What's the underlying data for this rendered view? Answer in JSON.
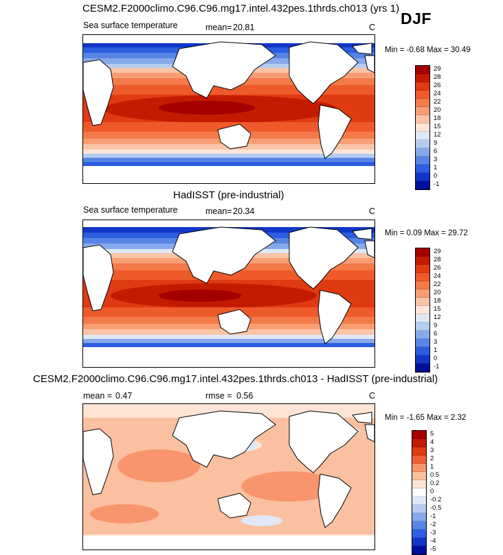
{
  "season": "DJF",
  "panels": [
    {
      "title": "CESM2.F2000climo.C96.C96.mg17.intel.432pes.1thrds.ch013 (yrs 1)",
      "variable": "Sea surface temperature",
      "stat_label": "mean=",
      "stat_value": "20.81",
      "units": "C",
      "range_text": "Min =  -0.68 Max =  30.49",
      "levels": [
        "29",
        "28",
        "26",
        "24",
        "22",
        "20",
        "18",
        "15",
        "12",
        "9",
        "6",
        "3",
        "1",
        "0",
        "-1"
      ],
      "colors": [
        "#a50000",
        "#c41a00",
        "#e03a12",
        "#ef5a2a",
        "#f57a4a",
        "#f89e74",
        "#fbc4a6",
        "#fde6d8",
        "#dfe8f6",
        "#b5ccf0",
        "#86a9eb",
        "#5785e6",
        "#2d5de0",
        "#1236c8",
        "#000f9a"
      ]
    },
    {
      "title": "HadISST (pre-industrial)",
      "variable": "Sea surface temperature",
      "stat_label": "mean=",
      "stat_value": "20.34",
      "units": "C",
      "range_text": "Min =  0.09 Max =  29.72",
      "levels": [
        "29",
        "28",
        "26",
        "24",
        "22",
        "20",
        "18",
        "15",
        "12",
        "9",
        "6",
        "3",
        "1",
        "0",
        "-1"
      ],
      "colors": [
        "#a50000",
        "#c41a00",
        "#e03a12",
        "#ef5a2a",
        "#f57a4a",
        "#f89e74",
        "#fbc4a6",
        "#fde6d8",
        "#dfe8f6",
        "#b5ccf0",
        "#86a9eb",
        "#5785e6",
        "#2d5de0",
        "#1236c8",
        "#000f9a"
      ]
    },
    {
      "title": "CESM2.F2000climo.C96.C96.mg17.intel.432pes.1thrds.ch013 - HadISST (pre-industrial)",
      "stat_label": "mean =",
      "stat_value": "0.47",
      "rmse_label": "rmse =",
      "rmse_value": "0.56",
      "units": "C",
      "range_text": "Min = -1.65 Max =  2.32",
      "levels": [
        "5",
        "4",
        "3",
        "2",
        "1",
        "0.5",
        "0.2",
        "0",
        "-0.2",
        "-0.5",
        "-1",
        "-2",
        "-3",
        "-4",
        "-5"
      ],
      "colors": [
        "#a50000",
        "#c41a00",
        "#e03a12",
        "#f0603a",
        "#f8956c",
        "#fbc0a0",
        "#fde4d4",
        "#ffffff",
        "#dfe8f6",
        "#b5ccf0",
        "#86a9eb",
        "#5785e6",
        "#2d5de0",
        "#1236c8",
        "#000f9a"
      ]
    }
  ]
}
